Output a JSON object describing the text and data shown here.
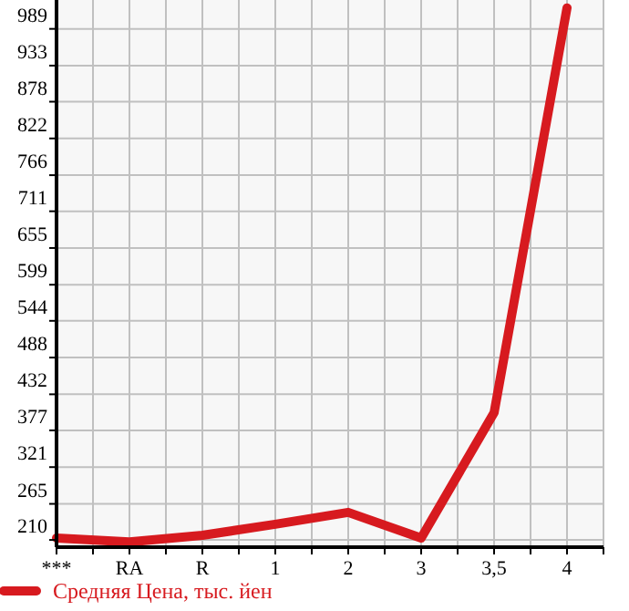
{
  "chart_data": {
    "type": "line",
    "categories": [
      "***",
      "RA",
      "R",
      "1",
      "2",
      "3",
      "3,5",
      "4"
    ],
    "series": [
      {
        "name": "Средняя Цена, тыс. йен",
        "color": "#d71a1f",
        "values": [
          213,
          207,
          217,
          234,
          252,
          213,
          404,
          1021
        ]
      }
    ],
    "ylim": [
      199,
      1033
    ],
    "yticks": [
      210,
      265,
      321,
      377,
      432,
      488,
      544,
      599,
      655,
      711,
      766,
      822,
      878,
      933,
      989
    ],
    "grid": true,
    "legend": "bottom",
    "marker": "none"
  }
}
